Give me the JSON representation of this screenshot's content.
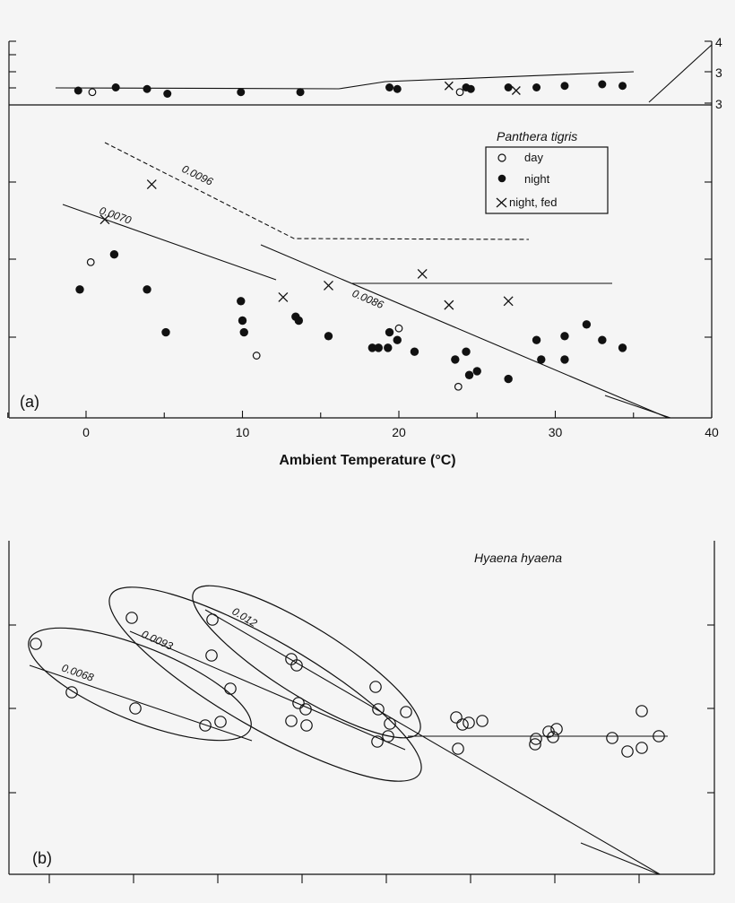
{
  "chart_data": [
    {
      "panel": "a",
      "type": "scatter",
      "panel_label": "(a)",
      "species": "Panthera tigris",
      "xlabel": "Ambient Temperature (°C)",
      "xlim": [
        -5,
        40
      ],
      "xticks": [
        0,
        10,
        20,
        30,
        40
      ],
      "right_axis_ticks": [
        "4",
        "3",
        "3"
      ],
      "legend": [
        {
          "label": "day",
          "marker": "open-circle"
        },
        {
          "label": "night",
          "marker": "filled-circle"
        },
        {
          "label": "night, fed",
          "marker": "x"
        }
      ],
      "slope_labels": [
        "0.0096",
        "0.0070",
        "0.0086"
      ],
      "top_strip": {
        "night": [
          [
            -0.5,
            2.7
          ],
          [
            1.9,
            2.9
          ],
          [
            3.9,
            2.8
          ],
          [
            5.2,
            2.5
          ],
          [
            9.9,
            2.6
          ],
          [
            13.7,
            2.6
          ],
          [
            19.4,
            2.9
          ],
          [
            19.9,
            2.8
          ],
          [
            24.3,
            2.9
          ],
          [
            24.6,
            2.8
          ],
          [
            27.0,
            2.9
          ],
          [
            28.8,
            2.9
          ],
          [
            30.6,
            3.0
          ],
          [
            33.0,
            3.1
          ],
          [
            34.3,
            3.0
          ]
        ],
        "day": [
          [
            0.4,
            2.6
          ],
          [
            23.9,
            2.6
          ]
        ],
        "night_fed": [
          [
            23.2,
            3.0
          ],
          [
            27.5,
            2.7
          ]
        ]
      },
      "series": [
        {
          "name": "day",
          "marker": "open-circle",
          "points": [
            [
              0.3,
              4.0
            ],
            [
              10.9,
              1.6
            ],
            [
              20.0,
              2.3
            ],
            [
              23.8,
              0.8
            ]
          ]
        },
        {
          "name": "night",
          "marker": "filled-circle",
          "points": [
            [
              -0.4,
              3.3
            ],
            [
              1.8,
              4.2
            ],
            [
              3.9,
              3.3
            ],
            [
              5.1,
              2.2
            ],
            [
              9.9,
              3.0
            ],
            [
              10.0,
              2.5
            ],
            [
              10.1,
              2.2
            ],
            [
              13.4,
              2.6
            ],
            [
              13.6,
              2.5
            ],
            [
              15.5,
              2.1
            ],
            [
              18.3,
              1.8
            ],
            [
              18.7,
              1.8
            ],
            [
              19.3,
              1.8
            ],
            [
              19.4,
              2.2
            ],
            [
              19.9,
              2.0
            ],
            [
              21.0,
              1.7
            ],
            [
              23.6,
              1.5
            ],
            [
              24.3,
              1.7
            ],
            [
              24.5,
              1.1
            ],
            [
              25.0,
              1.2
            ],
            [
              27.0,
              1.0
            ],
            [
              28.8,
              2.0
            ],
            [
              29.1,
              1.5
            ],
            [
              30.6,
              2.1
            ],
            [
              30.6,
              1.5
            ],
            [
              32.0,
              2.4
            ],
            [
              33.0,
              2.0
            ],
            [
              34.3,
              1.8
            ]
          ]
        },
        {
          "name": "night, fed",
          "marker": "x",
          "points": [
            [
              1.2,
              5.1
            ],
            [
              4.2,
              6.0
            ],
            [
              12.6,
              3.1
            ],
            [
              15.5,
              3.4
            ],
            [
              21.5,
              3.7
            ],
            [
              23.2,
              2.9
            ],
            [
              27.0,
              3.0
            ]
          ]
        }
      ]
    },
    {
      "panel": "b",
      "type": "scatter",
      "panel_label": "(b)",
      "species": "Hyaena hyaena",
      "slope_labels": [
        "0.012",
        "0.0093",
        "0.0068"
      ],
      "series": [
        {
          "name": "",
          "marker": "open-circle",
          "points": [
            [
              40,
              718
            ],
            [
              80,
              772
            ],
            [
              151,
              790
            ],
            [
              147,
              689
            ],
            [
              237,
              691
            ],
            [
              236,
              731
            ],
            [
              229,
              809
            ],
            [
              246,
              805
            ],
            [
              257,
              768
            ],
            [
              325,
              735
            ],
            [
              331,
              742
            ],
            [
              333,
              784
            ],
            [
              341,
              791
            ],
            [
              325,
              804
            ],
            [
              342,
              809
            ],
            [
              419,
              766
            ],
            [
              422,
              791
            ],
            [
              435,
              807
            ],
            [
              433,
              821
            ],
            [
              421,
              827
            ],
            [
              453,
              794
            ],
            [
              509,
              800
            ],
            [
              516,
              808
            ],
            [
              523,
              806
            ],
            [
              538,
              804
            ],
            [
              511,
              835
            ],
            [
              597,
              830
            ],
            [
              598,
              824
            ],
            [
              612,
              816
            ],
            [
              617,
              822
            ],
            [
              621,
              813
            ],
            [
              683,
              823
            ],
            [
              700,
              838
            ],
            [
              716,
              834
            ],
            [
              716,
              793
            ],
            [
              735,
              821
            ]
          ]
        }
      ]
    }
  ]
}
